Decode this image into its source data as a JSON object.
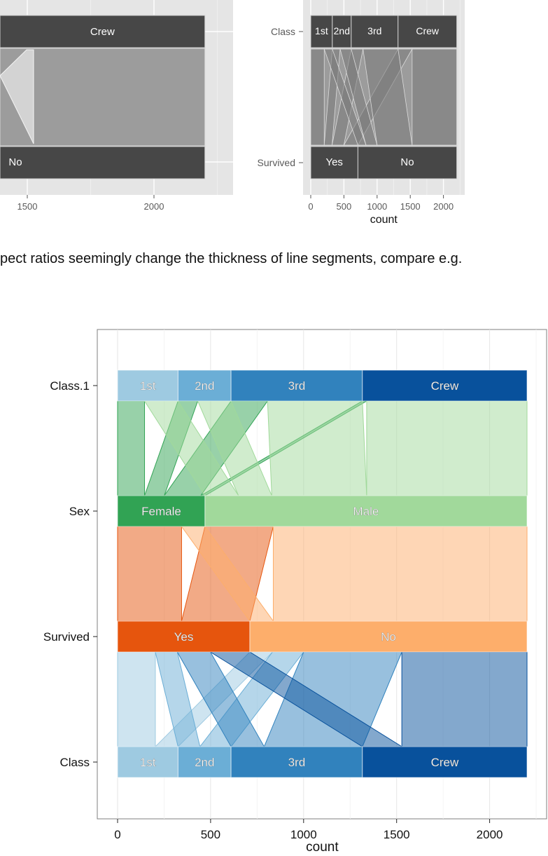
{
  "caption": "pect ratios seemingly change the thickness of line segments, compare e.g.",
  "colors": {
    "panel_gray": "#e5e5e5",
    "node_gray": "#474747",
    "ribbon_gray": "#9c9c9c",
    "class_blues": [
      "#9ecae1",
      "#6baed6",
      "#3182bd",
      "#08519c"
    ],
    "sex_greens": [
      "#31a354",
      "#a1d99b"
    ],
    "survived_oranges": [
      "#e6550d",
      "#fdae6b"
    ]
  },
  "chart_data": [
    {
      "type": "parallel-sets",
      "panel": "top-left (cropped)",
      "axes": [
        {
          "name": "",
          "nodes": [
            {
              "label": "Crew",
              "value": 885
            }
          ]
        },
        {
          "name": "",
          "nodes": [
            {
              "label": "No",
              "value": 1490
            }
          ]
        }
      ],
      "x_ticks": [
        1500,
        2000
      ],
      "xlim": [
        1300,
        2250
      ]
    },
    {
      "type": "parallel-sets",
      "panel": "top-right",
      "xlabel": "count",
      "x_ticks": [
        0,
        500,
        1000,
        1500,
        2000
      ],
      "xlim": [
        0,
        2300
      ],
      "axes": [
        {
          "name": "Class",
          "nodes": [
            {
              "label": "1st",
              "value": 325
            },
            {
              "label": "2nd",
              "value": 285
            },
            {
              "label": "3rd",
              "value": 706
            },
            {
              "label": "Crew",
              "value": 885
            }
          ]
        },
        {
          "name": "Survived",
          "nodes": [
            {
              "label": "Yes",
              "value": 711
            },
            {
              "label": "No",
              "value": 1490
            }
          ]
        }
      ]
    },
    {
      "type": "parallel-sets",
      "panel": "bottom",
      "xlabel": "count",
      "x_ticks": [
        0,
        500,
        1000,
        1500,
        2000
      ],
      "xlim": [
        -105,
        2310
      ],
      "axes": [
        {
          "name": "Class.1",
          "nodes": [
            {
              "label": "1st",
              "value": 325
            },
            {
              "label": "2nd",
              "value": 285
            },
            {
              "label": "3rd",
              "value": 706
            },
            {
              "label": "Crew",
              "value": 885
            }
          ]
        },
        {
          "name": "Sex",
          "nodes": [
            {
              "label": "Female",
              "value": 470
            },
            {
              "label": "Male",
              "value": 1731
            }
          ]
        },
        {
          "name": "Survived",
          "nodes": [
            {
              "label": "Yes",
              "value": 711
            },
            {
              "label": "No",
              "value": 1490
            }
          ]
        },
        {
          "name": "Class",
          "nodes": [
            {
              "label": "1st",
              "value": 325
            },
            {
              "label": "2nd",
              "value": 285
            },
            {
              "label": "3rd",
              "value": 706
            },
            {
              "label": "Crew",
              "value": 885
            }
          ]
        }
      ],
      "flows": {
        "class_sex": [
          {
            "class": "1st",
            "sex": "Female",
            "value": 145
          },
          {
            "class": "1st",
            "sex": "Male",
            "value": 180
          },
          {
            "class": "2nd",
            "sex": "Female",
            "value": 106
          },
          {
            "class": "2nd",
            "sex": "Male",
            "value": 179
          },
          {
            "class": "3rd",
            "sex": "Female",
            "value": 196
          },
          {
            "class": "3rd",
            "sex": "Male",
            "value": 510
          },
          {
            "class": "Crew",
            "sex": "Female",
            "value": 23
          },
          {
            "class": "Crew",
            "sex": "Male",
            "value": 862
          }
        ],
        "sex_survived": [
          {
            "sex": "Female",
            "survived": "Yes",
            "value": 344
          },
          {
            "sex": "Female",
            "survived": "No",
            "value": 126
          },
          {
            "sex": "Male",
            "survived": "Yes",
            "value": 367
          },
          {
            "sex": "Male",
            "survived": "No",
            "value": 1364
          }
        ],
        "survived_class": [
          {
            "survived": "Yes",
            "class": "1st",
            "value": 203
          },
          {
            "survived": "Yes",
            "class": "2nd",
            "value": 118
          },
          {
            "survived": "Yes",
            "class": "3rd",
            "value": 178
          },
          {
            "survived": "Yes",
            "class": "Crew",
            "value": 212
          },
          {
            "survived": "No",
            "class": "1st",
            "value": 122
          },
          {
            "survived": "No",
            "class": "2nd",
            "value": 167
          },
          {
            "survived": "No",
            "class": "3rd",
            "value": 528
          },
          {
            "survived": "No",
            "class": "Crew",
            "value": 673
          }
        ]
      }
    }
  ]
}
